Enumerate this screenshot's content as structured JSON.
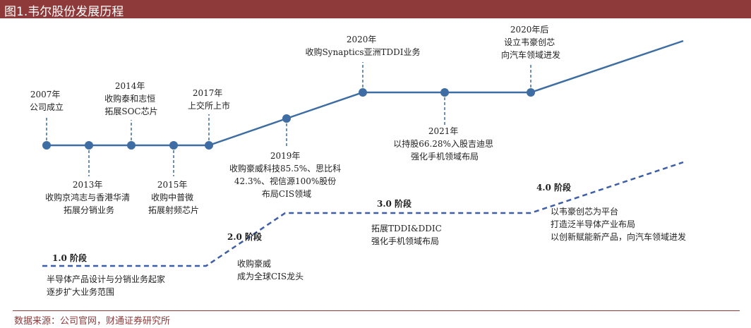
{
  "title": "图1.韦尔股份发展历程",
  "source": "数据来源：公司官网，财通证券研究所",
  "colors": {
    "title_bar": "#8e3a3a",
    "timeline_line": "#3e6da3",
    "node": "#3e6da3",
    "phase_line": "#3e5fa8"
  },
  "milestones": [
    {
      "id": "m2007",
      "lines": [
        "2007年",
        "公司成立"
      ]
    },
    {
      "id": "m2013",
      "lines": [
        "2013年",
        "收购京鸿志与香港华清",
        "拓展分销业务"
      ]
    },
    {
      "id": "m2014",
      "lines": [
        "2014年",
        "收购泰和志恒",
        "拓展SOC芯片"
      ]
    },
    {
      "id": "m2015",
      "lines": [
        "2015年",
        "收购中普微",
        "拓展射频芯片"
      ]
    },
    {
      "id": "m2017",
      "lines": [
        "2017年",
        "上交所上市"
      ]
    },
    {
      "id": "m2019",
      "lines": [
        "2019年",
        "收购豪威科技85.5%、思比科",
        "42.3%、视信源100%股份",
        "布局CIS领域"
      ]
    },
    {
      "id": "m2020",
      "lines": [
        "2020年",
        "收购Synaptics亚洲TDDI业务"
      ]
    },
    {
      "id": "m2021",
      "lines": [
        "2021年",
        "以持股66.28%入股吉迪思",
        "强化手机领域布局"
      ]
    },
    {
      "id": "m2020later",
      "lines": [
        "2020年后",
        "设立韦豪创芯",
        "向汽车领域进发"
      ]
    }
  ],
  "phases": [
    {
      "id": "p1",
      "title": "1.0 阶段",
      "lines": [
        "半导体产品设计与分销业务起家",
        "逐步扩大业务范围"
      ]
    },
    {
      "id": "p2",
      "title": "2.0 阶段",
      "lines": [
        "收购豪威",
        "成为全球CIS龙头"
      ]
    },
    {
      "id": "p3",
      "title": "3.0 阶段",
      "lines": [
        "拓展TDDI&DDIC",
        "强化手机领域布局"
      ]
    },
    {
      "id": "p4",
      "title": "4.0 阶段",
      "lines": [
        "以韦豪创芯为平台",
        "打造泛半导体产业布局",
        "以创新赋能新产品，向汽车领域进发"
      ]
    }
  ]
}
